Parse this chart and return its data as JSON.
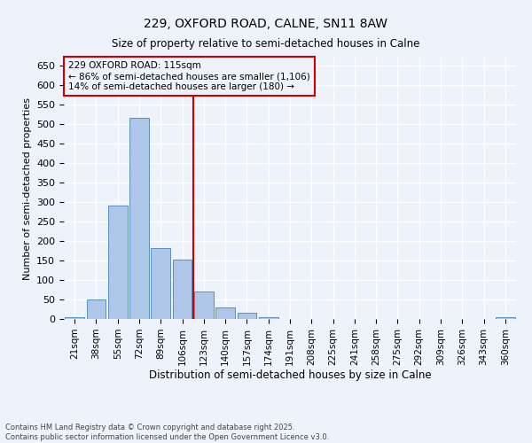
{
  "title": "229, OXFORD ROAD, CALNE, SN11 8AW",
  "subtitle": "Size of property relative to semi-detached houses in Calne",
  "xlabel": "Distribution of semi-detached houses by size in Calne",
  "ylabel": "Number of semi-detached properties",
  "bin_labels": [
    "21sqm",
    "38sqm",
    "55sqm",
    "72sqm",
    "89sqm",
    "106sqm",
    "123sqm",
    "140sqm",
    "157sqm",
    "174sqm",
    "191sqm",
    "208sqm",
    "225sqm",
    "241sqm",
    "258sqm",
    "275sqm",
    "292sqm",
    "309sqm",
    "326sqm",
    "343sqm",
    "360sqm"
  ],
  "bar_values": [
    5,
    50,
    290,
    515,
    182,
    152,
    70,
    30,
    15,
    5,
    0,
    0,
    0,
    0,
    0,
    0,
    0,
    0,
    0,
    0,
    5
  ],
  "bar_color": "#aec6e8",
  "bar_edge_color": "#5a8fc2",
  "vline_x": 6,
  "vline_color": "#cc0000",
  "ylim": [
    0,
    670
  ],
  "yticks": [
    0,
    50,
    100,
    150,
    200,
    250,
    300,
    350,
    400,
    450,
    500,
    550,
    600,
    650
  ],
  "annotation_title": "229 OXFORD ROAD: 115sqm",
  "annotation_line1": "← 86% of semi-detached houses are smaller (1,106)",
  "annotation_line2": "14% of semi-detached houses are larger (180) →",
  "footnote1": "Contains HM Land Registry data © Crown copyright and database right 2025.",
  "footnote2": "Contains public sector information licensed under the Open Government Licence v3.0.",
  "bg_color": "#eef2fb",
  "grid_color": "#ffffff"
}
